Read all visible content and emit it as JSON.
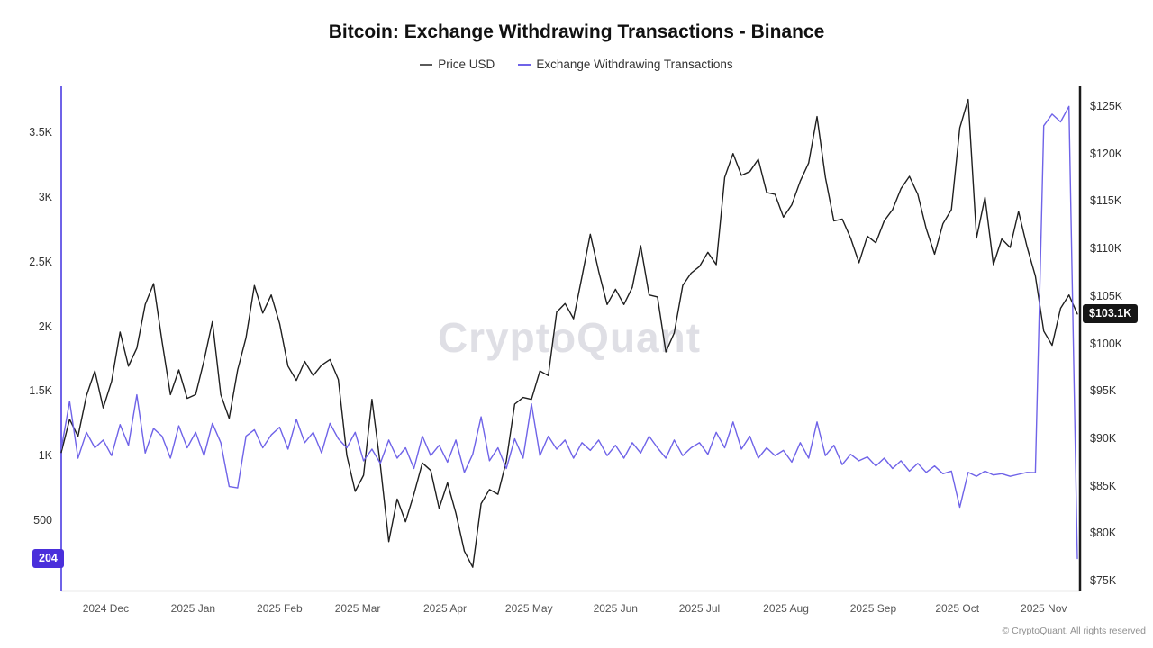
{
  "title": "Bitcoin: Exchange Withdrawing Transactions - Binance",
  "watermark": "CryptoQuant",
  "copyright": "© CryptoQuant. All rights reserved",
  "legend": [
    {
      "label": "Price USD",
      "color": "#5a5a5a"
    },
    {
      "label": "Exchange Withdrawing Transactions",
      "color": "#6f63e8"
    }
  ],
  "colors": {
    "accent_purple": "#6f63e8",
    "price_line": "#1f1f1f",
    "withdrawals_badge": "#4a2fdb",
    "price_badge": "#161616",
    "watermark": "#dfdfe5",
    "right_axis_line": "#1a1a1a"
  },
  "chart_data": {
    "type": "line",
    "title": "Bitcoin: Exchange Withdrawing Transactions - Binance",
    "x_description": "Time, mid-Nov 2024 to mid-Nov 2025, ~3-day intervals",
    "grid": "off",
    "legend_position": "top-center",
    "x_ticks": [
      {
        "label": "2024 Dec",
        "i": 5.3
      },
      {
        "label": "2025 Jan",
        "i": 15.7
      },
      {
        "label": "2025 Feb",
        "i": 26
      },
      {
        "label": "2025 Mar",
        "i": 35.3
      },
      {
        "label": "2025 Apr",
        "i": 45.7
      },
      {
        "label": "2025 May",
        "i": 55.7
      },
      {
        "label": "2025 Jun",
        "i": 66
      },
      {
        "label": "2025 Jul",
        "i": 76
      },
      {
        "label": "2025 Aug",
        "i": 86.3
      },
      {
        "label": "2025 Sep",
        "i": 96.7
      },
      {
        "label": "2025 Oct",
        "i": 106.7
      },
      {
        "label": "2025 Nov",
        "i": 117
      }
    ],
    "left_axis": {
      "name": "Exchange Withdrawing Transactions (count)",
      "ticks": [
        "500",
        "1K",
        "1.5K",
        "2K",
        "2.5K",
        "3K",
        "3.5K"
      ],
      "tick_values": [
        500,
        1000,
        1500,
        2000,
        2500,
        3000,
        3500
      ],
      "current_value": "204",
      "current_value_num": 204
    },
    "right_axis": {
      "name": "Price USD",
      "ticks": [
        "$75K",
        "$80K",
        "$85K",
        "$90K",
        "$95K",
        "$100K",
        "$105K",
        "$110K",
        "$115K",
        "$120K",
        "$125K"
      ],
      "tick_values": [
        75,
        80,
        85,
        90,
        95,
        100,
        105,
        110,
        115,
        120,
        125
      ],
      "current_value": "$103.1K",
      "current_value_num": 103.1
    },
    "series": [
      {
        "name": "Price USD",
        "axis": "right",
        "color": "#1f1f1f",
        "unit": "USD thousands",
        "values": [
          88.5,
          92.0,
          90.2,
          94.5,
          97.1,
          93.2,
          96.0,
          101.2,
          97.6,
          99.5,
          104.1,
          106.3,
          100.2,
          94.6,
          97.2,
          94.2,
          94.6,
          98.2,
          102.3,
          94.6,
          92.1,
          97.2,
          100.6,
          106.1,
          103.2,
          105.1,
          102.1,
          97.6,
          96.1,
          98.1,
          96.6,
          97.7,
          98.3,
          96.2,
          88.2,
          84.4,
          86.1,
          94.1,
          87.2,
          79.1,
          83.6,
          81.2,
          84.1,
          87.4,
          86.6,
          82.6,
          85.3,
          82.1,
          78.1,
          76.4,
          83.1,
          84.6,
          84.1,
          87.6,
          93.6,
          94.3,
          94.1,
          97.1,
          96.6,
          103.3,
          104.2,
          102.6,
          107.0,
          111.5,
          107.6,
          104.1,
          105.7,
          104.1,
          105.9,
          110.3,
          105.1,
          104.9,
          99.1,
          101.1,
          106.1,
          107.4,
          108.1,
          109.6,
          108.3,
          117.5,
          120.0,
          117.7,
          118.1,
          119.4,
          115.9,
          115.7,
          113.3,
          114.6,
          117.1,
          119.0,
          123.9,
          117.5,
          112.9,
          113.1,
          111.1,
          108.5,
          111.3,
          110.6,
          112.9,
          114.1,
          116.3,
          117.6,
          115.7,
          112.1,
          109.4,
          112.6,
          114.1,
          122.7,
          125.7,
          111.1,
          115.4,
          108.3,
          111.0,
          110.1,
          113.9,
          110.2,
          107.1,
          101.3,
          99.8,
          103.7,
          105.1,
          103.1
        ]
      },
      {
        "name": "Exchange Withdrawing Transactions",
        "axis": "left",
        "color": "#6f63e8",
        "unit": "transactions",
        "values": [
          1050,
          1420,
          980,
          1180,
          1060,
          1120,
          1000,
          1240,
          1080,
          1470,
          1020,
          1210,
          1150,
          980,
          1230,
          1060,
          1180,
          1000,
          1250,
          1100,
          760,
          750,
          1150,
          1200,
          1060,
          1160,
          1220,
          1050,
          1280,
          1100,
          1180,
          1020,
          1250,
          1130,
          1060,
          1180,
          960,
          1050,
          940,
          1120,
          980,
          1060,
          900,
          1150,
          1000,
          1080,
          950,
          1120,
          870,
          1010,
          1300,
          960,
          1060,
          900,
          1130,
          980,
          1400,
          1000,
          1150,
          1050,
          1120,
          980,
          1100,
          1040,
          1120,
          1000,
          1080,
          980,
          1100,
          1020,
          1150,
          1060,
          980,
          1120,
          1000,
          1060,
          1100,
          1010,
          1180,
          1060,
          1260,
          1050,
          1150,
          980,
          1060,
          1000,
          1040,
          950,
          1100,
          980,
          1260,
          1000,
          1080,
          930,
          1010,
          960,
          990,
          920,
          980,
          900,
          960,
          880,
          940,
          870,
          920,
          860,
          880,
          600,
          870,
          840,
          880,
          850,
          860,
          840,
          855,
          870,
          868,
          3550,
          3640,
          3580,
          3700,
          204
        ]
      }
    ]
  }
}
